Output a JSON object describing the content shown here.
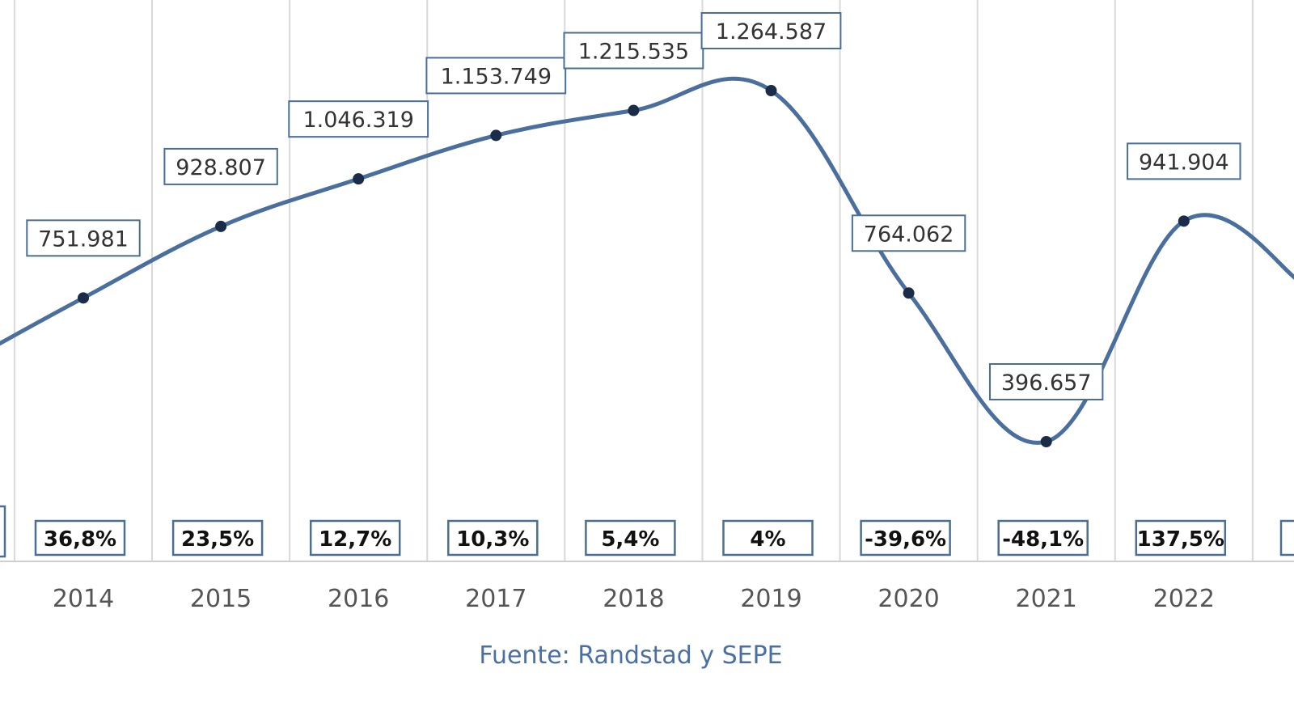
{
  "chart_data": {
    "type": "line",
    "title": "",
    "xlabel": "",
    "ylabel": "",
    "categories": [
      "2014",
      "2015",
      "2016",
      "2017",
      "2018",
      "2019",
      "2020",
      "2021",
      "2022"
    ],
    "series": [
      {
        "values": [
          751981,
          928807,
          1046319,
          1153749,
          1215535,
          1264587,
          764062,
          396657,
          941904
        ],
        "value_labels": [
          "751.981",
          "928.807",
          "1.046.319",
          "1.153.749",
          "1.215.535",
          "1.264.587",
          "764.062",
          "396.657",
          "941.904"
        ],
        "change_labels": [
          "36,8%",
          "23,5%",
          "12,7%",
          "10,3%",
          "5,4%",
          "4%",
          "-39,6%",
          "-48,1%",
          "137,5%"
        ]
      }
    ],
    "ylim": [
      0,
      1500000
    ],
    "grid": "vertical",
    "legend": "none"
  },
  "source": "Fuente: Randstad y SEPE",
  "colors": {
    "line": "#4a6f9e",
    "marker": "#1b2c48",
    "box_border": "#4a6f96",
    "source_text": "#4a6fa5",
    "gridline": "#d9d9d9",
    "tick_text": "#555555"
  }
}
